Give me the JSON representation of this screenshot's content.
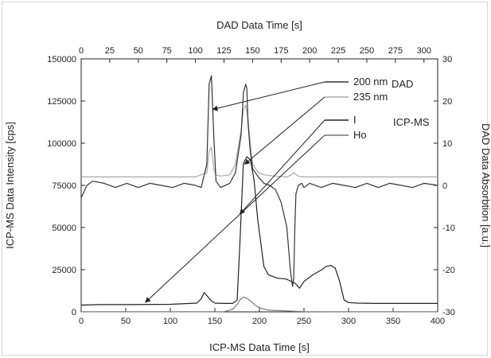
{
  "chart_data": {
    "type": "line",
    "title": "",
    "bottom_axis": {
      "label": "ICP-MS Data Time [s]",
      "range": [
        0,
        400
      ],
      "ticks": [
        0,
        50,
        100,
        150,
        200,
        250,
        300,
        350,
        400
      ]
    },
    "top_axis": {
      "label": "DAD Data Time [s]",
      "range": [
        0,
        312
      ],
      "ticks": [
        0,
        25,
        50,
        75,
        100,
        125,
        150,
        175,
        200,
        225,
        250,
        275,
        300
      ]
    },
    "left_axis": {
      "label": "ICP-MS Data Intensity [cps]",
      "range": [
        0,
        150000
      ],
      "ticks": [
        0,
        25000,
        50000,
        75000,
        100000,
        125000,
        150000
      ]
    },
    "right_axis": {
      "label": "DAD Data Absorbtion [a.u.]",
      "range": [
        -30,
        30
      ],
      "ticks": [
        -30,
        -20,
        -10,
        0,
        10,
        20,
        30
      ]
    },
    "legend": {
      "group_labels": [
        "DAD",
        "ICP-MS"
      ],
      "entries": [
        "200 nm",
        "235 nm",
        "I",
        "Ho"
      ]
    },
    "series": [
      {
        "name": "200 nm",
        "axis": "DAD",
        "color": "#333333",
        "x": [
          0,
          5,
          10,
          20,
          30,
          40,
          50,
          60,
          70,
          80,
          90,
          100,
          105,
          110,
          112,
          114,
          116,
          118,
          122,
          130,
          135,
          140,
          142,
          144,
          145,
          146,
          148,
          150,
          155,
          160,
          165,
          170,
          175,
          180,
          183,
          185,
          186,
          187,
          188,
          190,
          193,
          195,
          200,
          210,
          220,
          230,
          240,
          250,
          260,
          270,
          280,
          290,
          300,
          312
        ],
        "y": [
          -3,
          0,
          1,
          0.5,
          -0.5,
          0.5,
          -0.5,
          0.5,
          0,
          -0.5,
          0.5,
          0,
          -0.5,
          5,
          24,
          26,
          12,
          1,
          -0.5,
          0.5,
          3,
          12,
          22,
          24,
          23,
          15,
          8,
          4,
          2,
          0.5,
          0,
          -1,
          -4,
          -10,
          -20,
          -24,
          -22,
          -10,
          -2,
          0,
          0.5,
          -0.5,
          0.5,
          -0.5,
          0.5,
          0,
          -0.5,
          0.5,
          -0.5,
          0.5,
          0,
          -0.5,
          0.5,
          0
        ]
      },
      {
        "name": "235 nm",
        "axis": "DAD",
        "color": "#a8a8a8",
        "x": [
          0,
          50,
          100,
          110,
          112,
          114,
          116,
          118,
          122,
          130,
          135,
          140,
          142,
          144,
          146,
          148,
          150,
          155,
          160,
          170,
          180,
          184,
          186,
          188,
          190,
          195,
          200,
          250,
          312
        ],
        "y": [
          2,
          2,
          2,
          3,
          8,
          9,
          4,
          2.5,
          2.2,
          2.5,
          5,
          13,
          18,
          19,
          16,
          10,
          5,
          3,
          2.5,
          2.2,
          2,
          2.5,
          3,
          2.6,
          2.2,
          2,
          2,
          2,
          2
        ]
      },
      {
        "name": "I",
        "axis": "ICP-MS",
        "color": "#222222",
        "x": [
          0,
          20,
          50,
          100,
          130,
          135,
          138,
          142,
          146,
          150,
          160,
          170,
          175,
          178,
          182,
          186,
          190,
          194,
          198,
          205,
          210,
          220,
          230,
          240,
          245,
          250,
          260,
          270,
          275,
          280,
          285,
          290,
          295,
          300,
          310,
          330,
          360,
          400
        ],
        "y": [
          4000,
          4300,
          4300,
          4500,
          5200,
          8000,
          11500,
          9000,
          6500,
          5200,
          5000,
          5000,
          7000,
          40000,
          88000,
          92000,
          90000,
          78000,
          55000,
          27000,
          22000,
          20000,
          19500,
          17000,
          14000,
          18000,
          22000,
          25000,
          27000,
          27500,
          26000,
          18000,
          7000,
          5500,
          5200,
          5000,
          5000,
          5000
        ]
      },
      {
        "name": "Ho",
        "axis": "ICP-MS",
        "color": "#777777",
        "x": [
          0,
          100,
          160,
          170,
          175,
          178,
          182,
          186,
          190,
          195,
          200,
          210,
          250,
          300,
          400
        ],
        "y": [
          50,
          50,
          100,
          1500,
          4500,
          7000,
          8800,
          8000,
          6500,
          4000,
          2500,
          1000,
          150,
          60,
          50
        ]
      }
    ]
  }
}
